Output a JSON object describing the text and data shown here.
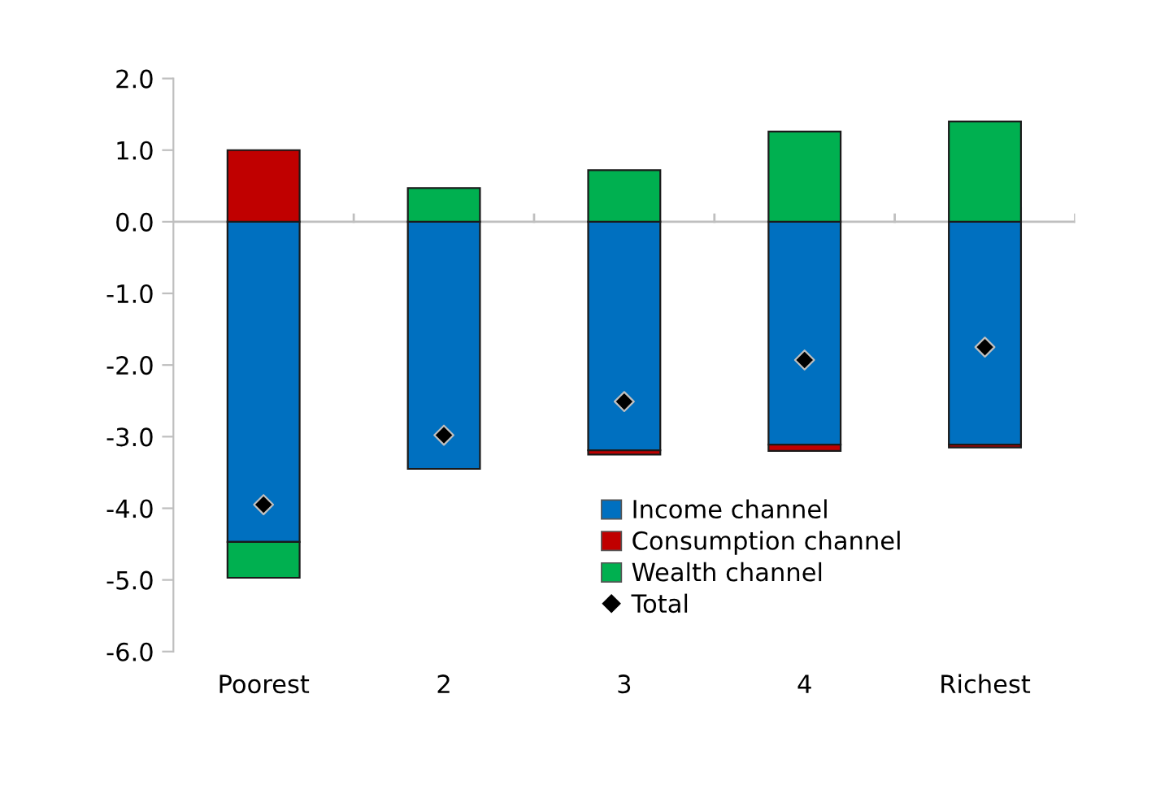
{
  "chart_data": {
    "type": "bar",
    "stacked": true,
    "categories": [
      "Poorest",
      "2",
      "3",
      "4",
      "Richest"
    ],
    "series": [
      {
        "name": "Income channel",
        "color": "#0070c0",
        "values": [
          -4.47,
          -3.45,
          -3.19,
          -3.11,
          -3.11
        ]
      },
      {
        "name": "Consumption channel",
        "color": "#c00000",
        "values": [
          1.0,
          0.0,
          -0.06,
          -0.09,
          -0.04
        ]
      },
      {
        "name": "Wealth channel",
        "color": "#00b050",
        "values": [
          -0.5,
          0.47,
          0.72,
          1.26,
          1.4
        ]
      },
      {
        "name": "Total",
        "type": "scatter",
        "color": "#000000",
        "marker": "diamond",
        "x": [
          "Poorest",
          "2",
          "3",
          "4",
          "Richest"
        ],
        "values": [
          -3.95,
          -2.98,
          -2.51,
          -1.93,
          -1.75
        ]
      }
    ],
    "ylim": [
      -6.0,
      2.0
    ],
    "yticks": [
      {
        "value": -6,
        "label": "-6.0"
      },
      {
        "value": -5,
        "label": "-5.0"
      },
      {
        "value": -4,
        "label": "-4.0"
      },
      {
        "value": -3,
        "label": "-3.0"
      },
      {
        "value": -2,
        "label": "-2.0"
      },
      {
        "value": -1,
        "label": "-1.0"
      },
      {
        "value": 0,
        "label": "0.0"
      },
      {
        "value": 1,
        "label": "1.0"
      },
      {
        "value": 2,
        "label": "2.0"
      }
    ],
    "legend": "bottom right"
  }
}
